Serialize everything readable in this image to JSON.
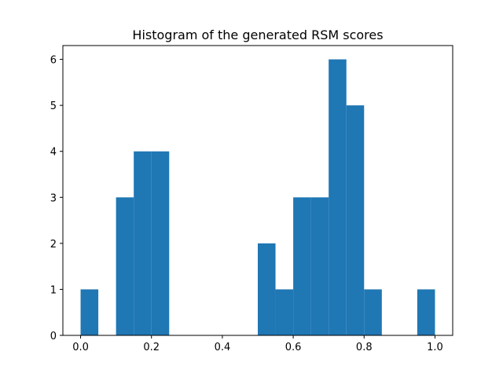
{
  "chart_data": {
    "type": "bar",
    "title": "Histogram of the generated RSM scores",
    "xlabel": "",
    "ylabel": "",
    "bin_edges": [
      0.0,
      0.05,
      0.1,
      0.15,
      0.2,
      0.25,
      0.3,
      0.35,
      0.4,
      0.45,
      0.5,
      0.55,
      0.6,
      0.65,
      0.7,
      0.75,
      0.8,
      0.85,
      0.9,
      0.95,
      1.0
    ],
    "values": [
      1,
      0,
      3,
      4,
      4,
      0,
      0,
      0,
      0,
      0,
      2,
      1,
      3,
      3,
      6,
      5,
      1,
      0,
      0,
      1
    ],
    "xlim": [
      -0.05,
      1.05
    ],
    "ylim": [
      0,
      6.3
    ],
    "xticks": [
      0.0,
      0.2,
      0.4,
      0.6,
      0.8,
      1.0
    ],
    "xtick_labels": [
      "0.0",
      "0.2",
      "0.4",
      "0.6",
      "0.8",
      "1.0"
    ],
    "yticks": [
      0,
      1,
      2,
      3,
      4,
      5,
      6
    ],
    "ytick_labels": [
      "0",
      "1",
      "2",
      "3",
      "4",
      "5",
      "6"
    ],
    "bar_color": "#1f77b4",
    "grid": false,
    "legend": "none"
  }
}
